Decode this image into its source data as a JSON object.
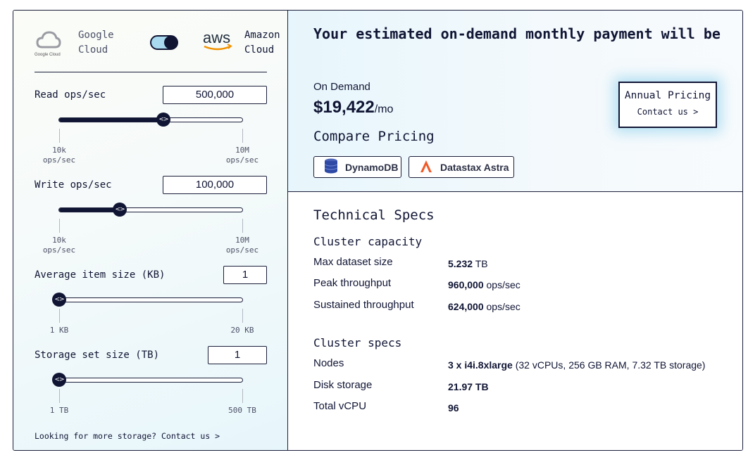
{
  "provider_toggle": {
    "left_provider": "Google\nCloud",
    "left_logo_caption": "Google Cloud",
    "right_provider": "Amazon\nCloud",
    "right_logo_text": "aws",
    "selected": "Amazon Cloud"
  },
  "controls": [
    {
      "label": "Read ops/sec",
      "value": "500,000",
      "fill_fraction": 0.57,
      "min_label": "10k\nops/sec",
      "max_label": "10M\nops/sec"
    },
    {
      "label": "Write ops/sec",
      "value": "100,000",
      "fill_fraction": 0.33,
      "min_label": "10k\nops/sec",
      "max_label": "10M\nops/sec"
    },
    {
      "label": "Average item size (KB)",
      "value": "1",
      "fill_fraction": 0.0,
      "min_label": "1 KB",
      "max_label": "20 KB"
    },
    {
      "label": "Storage set size (TB)",
      "value": "1",
      "fill_fraction": 0.0,
      "min_label": "1 TB",
      "max_label": "500 TB"
    }
  ],
  "slider_knob_glyph": "<>",
  "storage_link": "Looking for more storage? Contact us >",
  "pricing": {
    "headline": "Your estimated on-demand monthly payment will be",
    "ondemand_label": "On Demand",
    "amount": "$19,422",
    "unit": "/mo",
    "compare_title": "Compare Pricing",
    "compare_buttons": [
      "DynamoDB",
      "Datastax Astra"
    ],
    "annual_title": "Annual Pricing",
    "annual_link": "Contact us >"
  },
  "specs": {
    "title": "Technical Specs",
    "capacity_title": "Cluster capacity",
    "capacity": [
      {
        "key": "Max dataset size",
        "value": "5.232",
        "unit": "TB"
      },
      {
        "key": "Peak throughput",
        "value": "960,000",
        "unit": "ops/sec"
      },
      {
        "key": "Sustained throughput",
        "value": "624,000",
        "unit": "ops/sec"
      }
    ],
    "cluster_title": "Cluster specs",
    "cluster": [
      {
        "key": "Nodes",
        "value": "3 x i4i.8xlarge",
        "unit": "(32 vCPUs, 256 GB RAM, 7.32 TB storage)"
      },
      {
        "key": "Disk storage",
        "value": "21.97 TB",
        "unit": ""
      },
      {
        "key": "Total vCPU",
        "value": "96",
        "unit": ""
      }
    ]
  },
  "colors": {
    "navy": "#101534",
    "accent_blue": "#a9d9ee",
    "aws_orange": "#f29100",
    "astra_orange": "#f05a28"
  }
}
